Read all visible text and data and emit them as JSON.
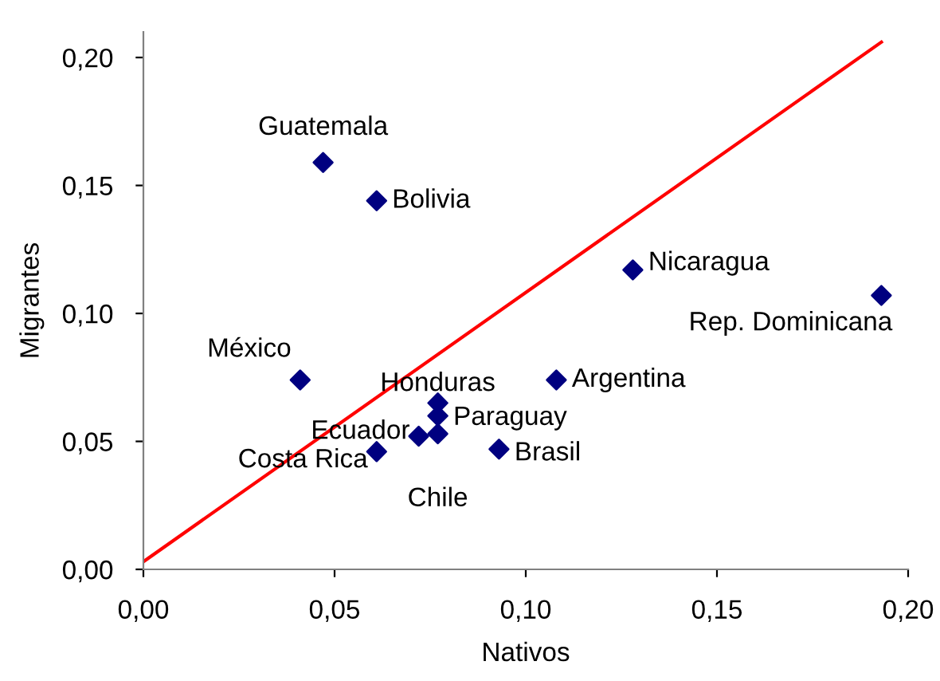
{
  "chart_data": {
    "type": "scatter",
    "xlabel": "Nativos",
    "ylabel": "Migrantes",
    "xlim": [
      0,
      0.2
    ],
    "ylim": [
      0,
      0.21
    ],
    "xticks": [
      {
        "value": 0,
        "label": "0,00"
      },
      {
        "value": 0.05,
        "label": "0,05"
      },
      {
        "value": 0.1,
        "label": "0,10"
      },
      {
        "value": 0.15,
        "label": "0,15"
      },
      {
        "value": 0.2,
        "label": "0,20"
      }
    ],
    "yticks": [
      {
        "value": 0,
        "label": "0,00"
      },
      {
        "value": 0.05,
        "label": "0,05"
      },
      {
        "value": 0.1,
        "label": "0,10"
      },
      {
        "value": 0.15,
        "label": "0,15"
      },
      {
        "value": 0.2,
        "label": "0,20"
      }
    ],
    "grid": false,
    "series": [
      {
        "marker": "diamond",
        "color": "#000080",
        "x": [
          0.047,
          0.061,
          0.041,
          0.077,
          0.077,
          0.077,
          0.072,
          0.061,
          0.108,
          0.093,
          0.128,
          0.193
        ],
        "values": [
          0.159,
          0.144,
          0.074,
          0.065,
          0.06,
          0.053,
          0.052,
          0.046,
          0.074,
          0.047,
          0.117,
          0.107
        ]
      },
      {
        "type": "line",
        "marker": "none",
        "color": "#ff0000",
        "x": [
          0,
          0.193
        ],
        "values": [
          0.003,
          0.206
        ]
      }
    ],
    "annotations": [
      {
        "text": "Guatemala",
        "x": 0.047,
        "y": 0.159
      },
      {
        "text": "Bolivia",
        "x": 0.061,
        "y": 0.144
      },
      {
        "text": "México",
        "x": 0.041,
        "y": 0.074
      },
      {
        "text": "Honduras",
        "x": 0.077,
        "y": 0.065
      },
      {
        "text": "Paraguay",
        "x": 0.077,
        "y": 0.06
      },
      {
        "text": "Chile",
        "x": 0.077,
        "y": 0.053
      },
      {
        "text": "Ecuador",
        "x": 0.072,
        "y": 0.052
      },
      {
        "text": "Costa Rica",
        "x": 0.061,
        "y": 0.046
      },
      {
        "text": "Argentina",
        "x": 0.108,
        "y": 0.074
      },
      {
        "text": "Brasil",
        "x": 0.093,
        "y": 0.047
      },
      {
        "text": "Nicaragua",
        "x": 0.128,
        "y": 0.117
      },
      {
        "text": "Rep. Dominicana",
        "x": 0.193,
        "y": 0.107
      }
    ]
  }
}
